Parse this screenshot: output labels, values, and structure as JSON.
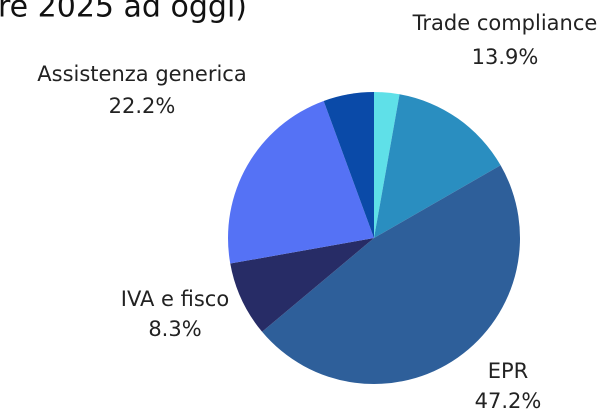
{
  "chart_data": {
    "type": "pie",
    "title": "re 2025 ad oggi)",
    "categories": [
      null,
      "Trade compliance",
      "EPR",
      "IVA e fisco",
      "Assistenza generica",
      null
    ],
    "values": [
      2.8,
      13.9,
      47.2,
      8.3,
      22.2,
      5.6
    ],
    "value_labels": [
      null,
      "13.9%",
      "47.2%",
      "8.3%",
      "22.2%",
      null
    ],
    "colors": [
      "#5fe0e8",
      "#2a8ec0",
      "#2e5f9a",
      "#272c66",
      "#5572f5",
      "#0a4aa8"
    ]
  }
}
